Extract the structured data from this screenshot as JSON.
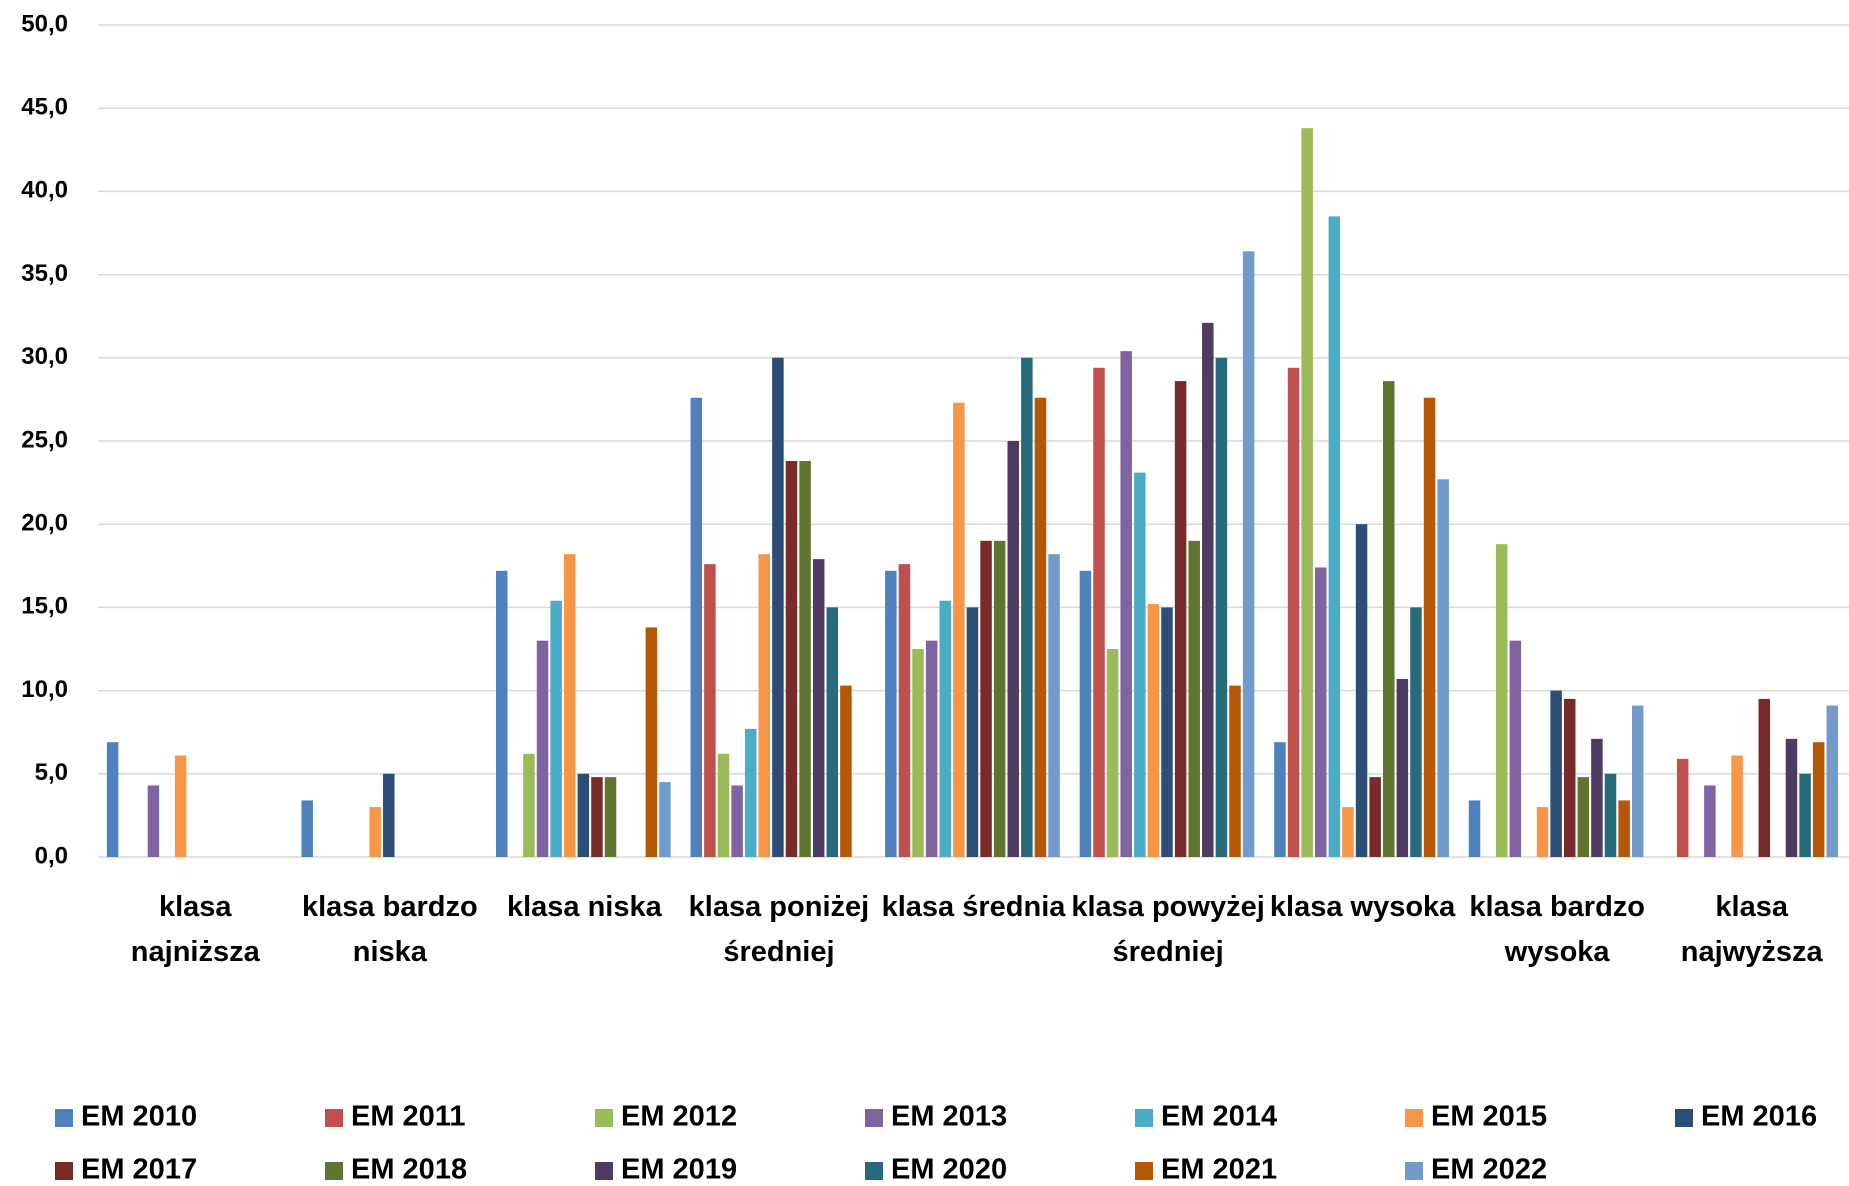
{
  "chart_data": {
    "type": "bar",
    "categories": [
      "klasa najniższa",
      "klasa bardzo niska",
      "klasa niska",
      "klasa poniżej średniej",
      "klasa średnia",
      "klasa powyżej średniej",
      "klasa wysoka",
      "klasa bardzo wysoka",
      "klasa najwyższa"
    ],
    "series": [
      {
        "name": "EM 2010",
        "color": "#4f81bd",
        "values": [
          6.9,
          3.4,
          17.2,
          27.6,
          17.2,
          17.2,
          6.9,
          3.4,
          0
        ]
      },
      {
        "name": "EM 2011",
        "color": "#c0504d",
        "values": [
          0,
          0,
          0,
          17.6,
          17.6,
          29.4,
          29.4,
          0,
          5.9
        ]
      },
      {
        "name": "EM 2012",
        "color": "#9bbb59",
        "values": [
          0,
          0,
          6.2,
          6.2,
          12.5,
          12.5,
          43.8,
          18.8,
          0
        ]
      },
      {
        "name": "EM 2013",
        "color": "#8064a2",
        "values": [
          4.3,
          0,
          13.0,
          4.3,
          13.0,
          30.4,
          17.4,
          13.0,
          4.3
        ]
      },
      {
        "name": "EM 2014",
        "color": "#4bacc6",
        "values": [
          0,
          0,
          15.4,
          7.7,
          15.4,
          23.1,
          38.5,
          0,
          0
        ]
      },
      {
        "name": "EM 2015",
        "color": "#f79646",
        "values": [
          6.1,
          3.0,
          18.2,
          18.2,
          27.3,
          15.2,
          3.0,
          3.0,
          6.1
        ]
      },
      {
        "name": "EM 2016",
        "color": "#2c4d75",
        "values": [
          0,
          5.0,
          5.0,
          30.0,
          15.0,
          15.0,
          20.0,
          10.0,
          0
        ]
      },
      {
        "name": "EM 2017",
        "color": "#772c2a",
        "values": [
          0,
          0,
          4.8,
          23.8,
          19.0,
          28.6,
          4.8,
          9.5,
          9.5
        ]
      },
      {
        "name": "EM 2018",
        "color": "#5f7530",
        "values": [
          0,
          0,
          4.8,
          23.8,
          19.0,
          19.0,
          28.6,
          4.8,
          0
        ]
      },
      {
        "name": "EM 2019",
        "color": "#4d3b62",
        "values": [
          0,
          0,
          0,
          17.9,
          25.0,
          32.1,
          10.7,
          7.1,
          7.1
        ]
      },
      {
        "name": "EM 2020",
        "color": "#276a7c",
        "values": [
          0,
          0,
          0,
          15.0,
          30.0,
          30.0,
          15.0,
          5.0,
          5.0
        ]
      },
      {
        "name": "EM 2021",
        "color": "#b65708",
        "values": [
          0,
          0,
          13.8,
          10.3,
          27.6,
          10.3,
          27.6,
          3.4,
          6.9
        ]
      },
      {
        "name": "EM 2022",
        "color": "#729aca",
        "values": [
          0,
          0,
          4.5,
          0,
          18.2,
          36.4,
          22.7,
          9.1,
          9.1
        ]
      }
    ],
    "ylim": [
      0,
      50
    ],
    "yticks": [
      {
        "value": 0,
        "label": "0,0"
      },
      {
        "value": 5,
        "label": "5,0"
      },
      {
        "value": 10,
        "label": "10,0"
      },
      {
        "value": 15,
        "label": "15,0"
      },
      {
        "value": 20,
        "label": "20,0"
      },
      {
        "value": 25,
        "label": "25,0"
      },
      {
        "value": 30,
        "label": "30,0"
      },
      {
        "value": 35,
        "label": "35,0"
      },
      {
        "value": 40,
        "label": "40,0"
      },
      {
        "value": 45,
        "label": "45,0"
      },
      {
        "value": 50,
        "label": "50,0"
      }
    ],
    "grid": true
  }
}
